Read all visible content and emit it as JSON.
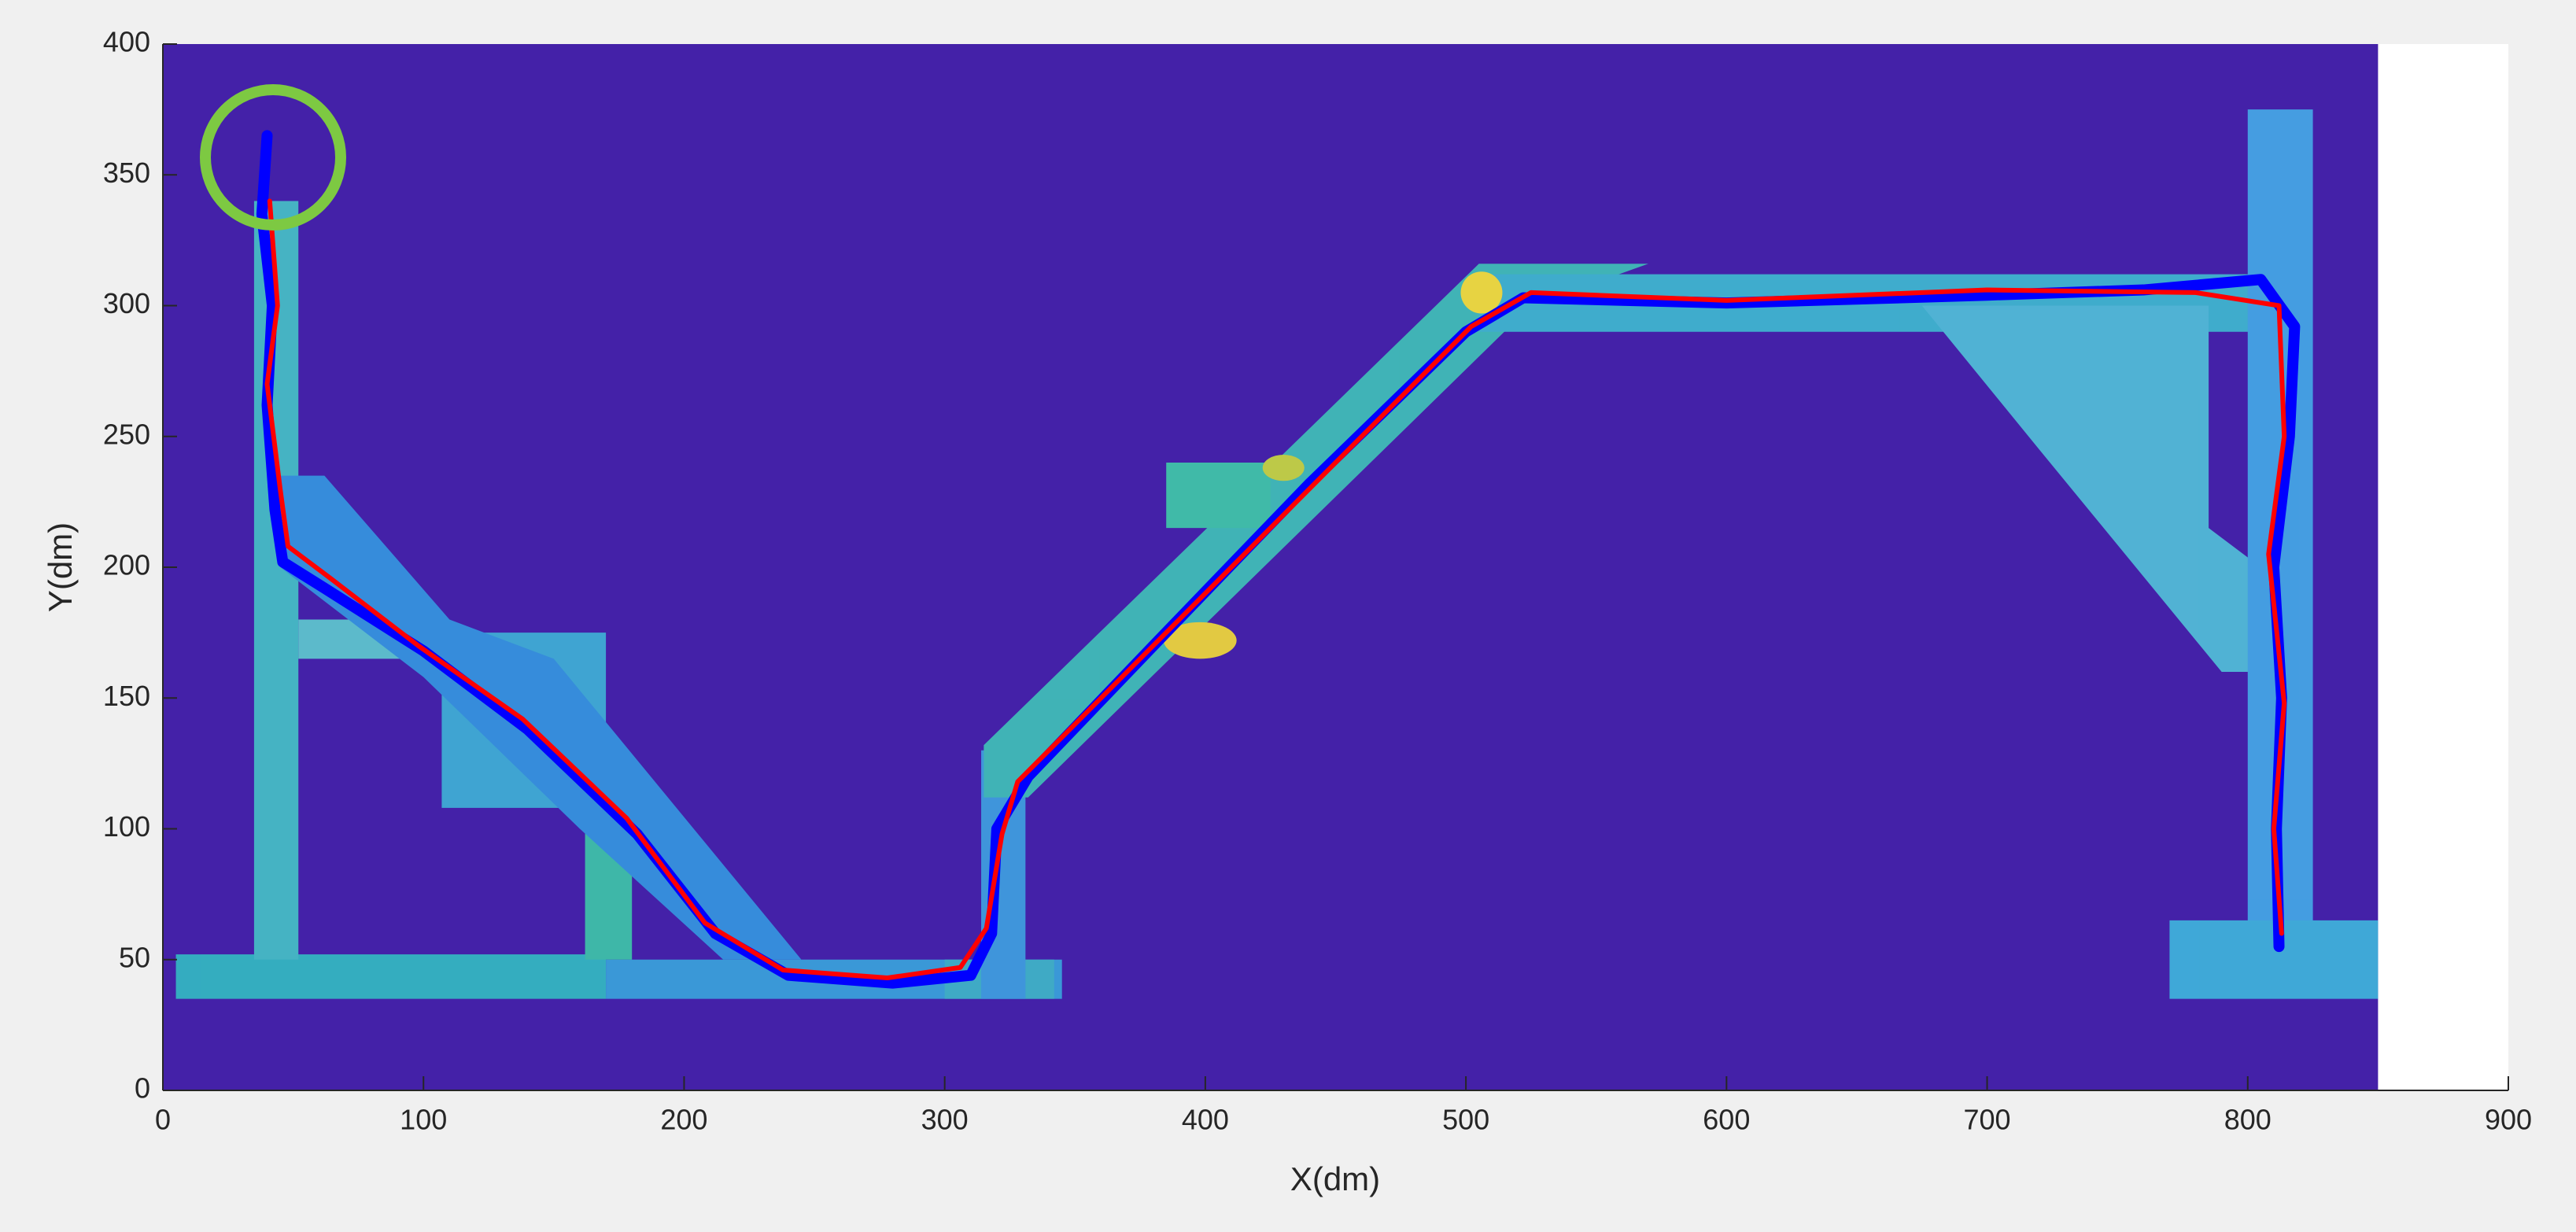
{
  "chart_data": {
    "type": "line",
    "xlabel": "X(dm)",
    "ylabel": "Y(dm)",
    "xlim": [
      0,
      900
    ],
    "ylim": [
      0,
      400
    ],
    "xticks": [
      0,
      100,
      200,
      300,
      400,
      500,
      600,
      700,
      800,
      900
    ],
    "yticks": [
      0,
      50,
      100,
      150,
      200,
      250,
      300,
      350,
      400
    ],
    "grid": false,
    "series": [
      {
        "color": "#0000ff",
        "x": [
          40,
          38,
          42,
          40,
          43,
          46,
          62,
          100,
          140,
          182,
          212,
          240,
          280,
          310,
          318,
          320,
          332,
          382,
          440,
          500,
          522,
          600,
          700,
          760,
          805,
          818,
          816,
          810,
          813,
          811,
          812
        ],
        "y": [
          365,
          335,
          300,
          262,
          222,
          202,
          192,
          168,
          138,
          98,
          60,
          44,
          41,
          44,
          60,
          100,
          120,
          172,
          232,
          290,
          303,
          301,
          304,
          306,
          310,
          292,
          250,
          200,
          150,
          100,
          55
        ]
      },
      {
        "color": "#ff0000",
        "x": [
          41,
          44,
          40,
          45,
          48,
          64,
          98,
          138,
          178,
          208,
          238,
          278,
          306,
          316,
          322,
          328,
          378,
          438,
          502,
          525,
          600,
          700,
          780,
          812,
          814,
          808,
          814,
          810,
          813
        ],
        "y": [
          340,
          300,
          270,
          230,
          208,
          196,
          170,
          142,
          104,
          64,
          46,
          43,
          47,
          62,
          98,
          118,
          168,
          228,
          292,
          305,
          302,
          306,
          305,
          300,
          250,
          205,
          148,
          100,
          60
        ]
      }
    ]
  }
}
